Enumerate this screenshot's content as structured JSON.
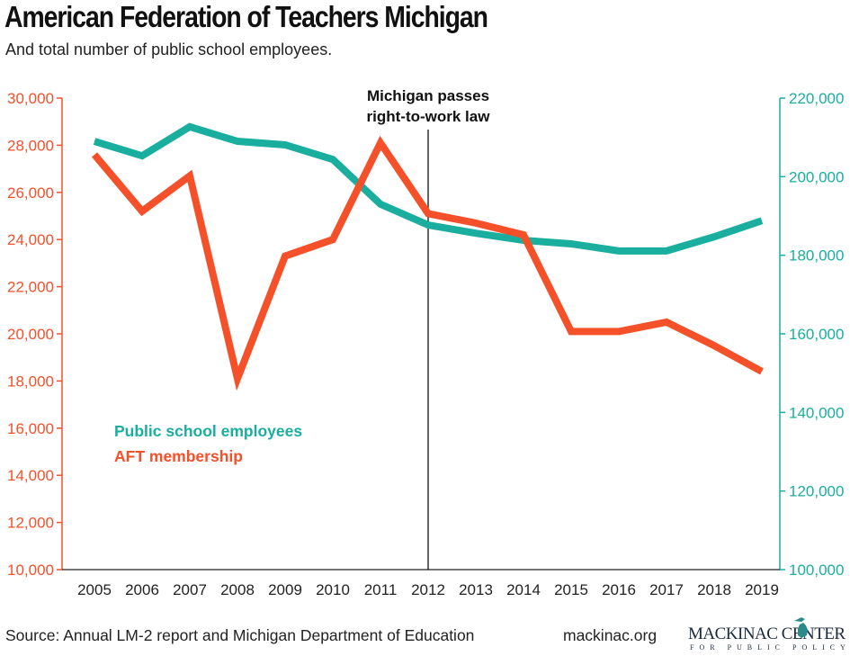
{
  "header": {
    "title": "American Federation of Teachers Michigan",
    "subtitle": "And total number of public school employees."
  },
  "footer": {
    "source": "Source: Annual LM-2 report and Michigan Department of Education",
    "site": "mackinac.org",
    "logo_main": "MACKINAC CENTER",
    "logo_sub": "FOR PUBLIC POLICY"
  },
  "chart_data": {
    "type": "line",
    "title": "American Federation of Teachers Michigan",
    "x": [
      2005,
      2006,
      2007,
      2008,
      2009,
      2010,
      2011,
      2012,
      2013,
      2014,
      2015,
      2016,
      2017,
      2018,
      2019
    ],
    "x_tick_labels": [
      "2005",
      "2006",
      "2007",
      "2008",
      "2009",
      "2010",
      "2011",
      "2012",
      "2013",
      "2014",
      "2015",
      "2016",
      "2017",
      "2018",
      "2019"
    ],
    "y_left": {
      "range": [
        10000,
        30000
      ],
      "ticks": [
        "10,000",
        "12,000",
        "14,000",
        "16,000",
        "18,000",
        "20,000",
        "22,000",
        "24,000",
        "26,000",
        "28,000",
        "30,000"
      ],
      "tick_values": [
        10000,
        12000,
        14000,
        16000,
        18000,
        20000,
        22000,
        24000,
        26000,
        28000,
        30000
      ]
    },
    "y_right": {
      "range": [
        100000,
        220000
      ],
      "ticks": [
        "100,000",
        "120,000",
        "140,000",
        "160,000",
        "180,000",
        "200,000",
        "220,000"
      ],
      "tick_values": [
        100000,
        120000,
        140000,
        160000,
        180000,
        200000,
        220000
      ]
    },
    "series": [
      {
        "name": "Public school employees",
        "axis": "right",
        "color": "#1AAE9F",
        "values": [
          209000,
          205300,
          212700,
          209000,
          208100,
          204400,
          193000,
          187700,
          185600,
          183800,
          182900,
          181100,
          181100,
          184700,
          188800
        ]
      },
      {
        "name": "AFT membership",
        "axis": "left",
        "color": "#F4502A",
        "values": [
          27600,
          25200,
          26700,
          18100,
          23300,
          24000,
          28100,
          25100,
          24700,
          24200,
          20100,
          20100,
          20500,
          19500,
          18400
        ]
      }
    ],
    "annotation": {
      "x": 2012,
      "line1": "Michigan passes",
      "line2": "right-to-work law"
    },
    "legend": {
      "placement": "left-middle"
    },
    "grid": false
  }
}
